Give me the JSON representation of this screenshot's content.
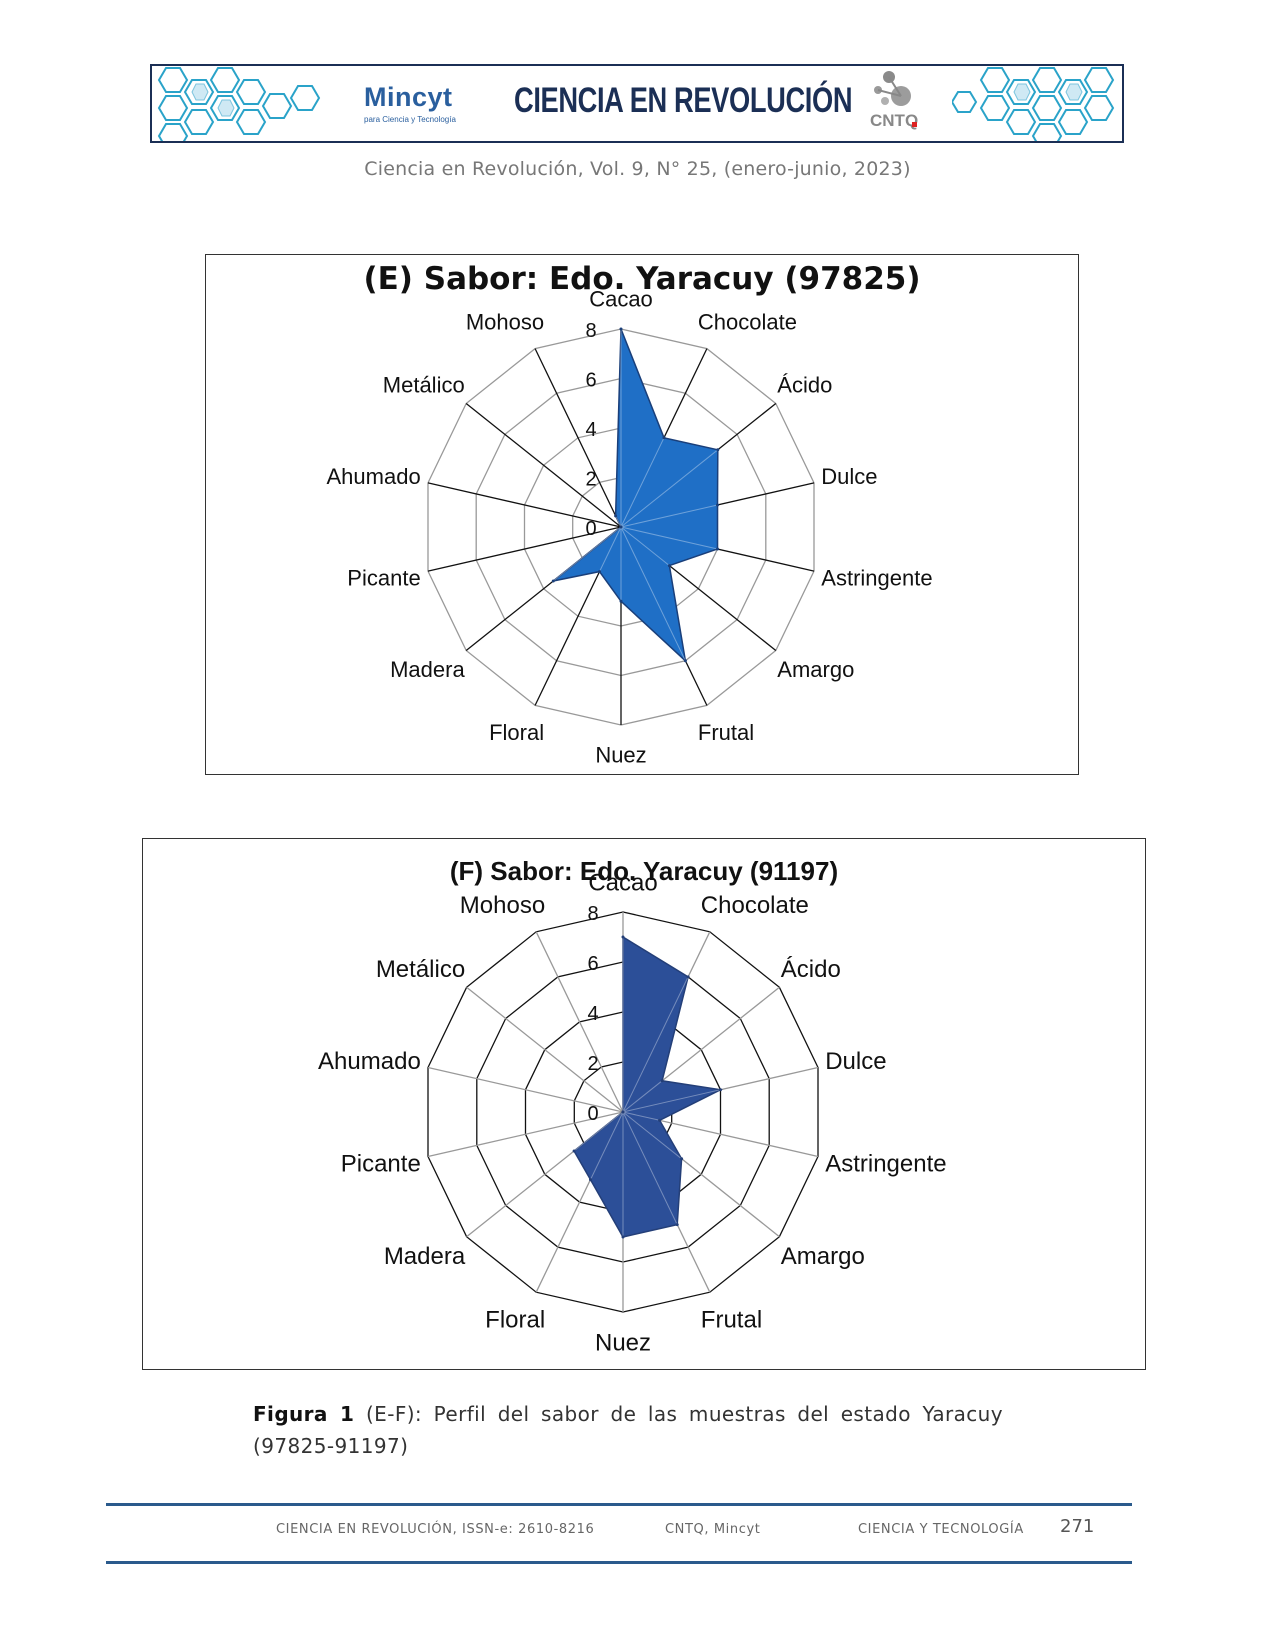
{
  "banner": {
    "logo_left": {
      "name": "Mincyt",
      "sub": "para Ciencia y Tecnología"
    },
    "title": "CIENCIA EN REVOLUCIÓN",
    "logo_right": {
      "name": "CNTQ"
    }
  },
  "journal_line": "Ciencia en Revolución, Vol. 9, N° 25, (enero-junio, 2023)",
  "chart_data": [
    {
      "type": "radar",
      "title": "(E) Sabor: Edo. Yaracuy  (97825)",
      "categories": [
        "Cacao",
        "Chocolate",
        "Ácido",
        "Dulce",
        "Astringente",
        "Amargo",
        "Frutal",
        "Nuez",
        "Floral",
        "Madera",
        "Picante",
        "Ahumado",
        "Metálico",
        "Mohoso"
      ],
      "values": [
        8,
        4,
        5,
        4,
        4,
        2.5,
        6,
        3,
        2,
        3.5,
        0,
        0,
        0,
        0.5
      ],
      "rlim": [
        0,
        8
      ],
      "ticks": [
        0,
        2,
        4,
        6,
        8
      ],
      "fill": "#1f6fc6",
      "stroke": "#1a3f7a",
      "grid": true
    },
    {
      "type": "radar",
      "title": "(F) Sabor: Edo. Yaracuy (91197)",
      "categories": [
        "Cacao",
        "Chocolate",
        "Ácido",
        "Dulce",
        "Astringente",
        "Amargo",
        "Frutal",
        "Nuez",
        "Floral",
        "Madera",
        "Picante",
        "Ahumado",
        "Metálico",
        "Mohoso"
      ],
      "values": [
        7,
        6,
        2,
        4,
        1.5,
        3,
        5,
        5,
        3,
        2.5,
        0,
        0,
        0,
        0
      ],
      "rlim": [
        0,
        8
      ],
      "ticks": [
        0,
        2,
        4,
        6,
        8
      ],
      "fill": "#2c4f98",
      "stroke": "#243f78",
      "grid": true
    }
  ],
  "caption": {
    "label": "Figura 1",
    "text": " (E-F): Perfil del sabor de las muestras del estado Yaracuy (97825-91197)"
  },
  "footer": {
    "issn": "CIENCIA EN REVOLUCIÓN, ISSN-e: 2610-8216",
    "org": "CNTQ, Mincyt",
    "area": "CIENCIA Y TECNOLOGÍA",
    "page": "271"
  }
}
